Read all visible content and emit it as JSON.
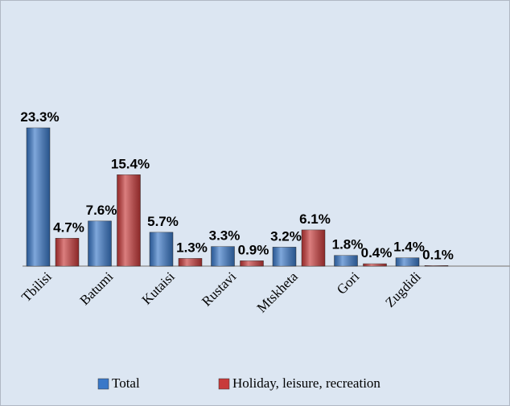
{
  "chart_data": {
    "type": "bar",
    "categories": [
      "Tbilisi",
      "Batumi",
      "Kutaisi",
      "Rustavi",
      "Mtskheta",
      "Gori",
      "Zugdidi"
    ],
    "series": [
      {
        "name": "Total",
        "color": "#3a78c8",
        "values": [
          23.3,
          7.6,
          5.7,
          3.3,
          3.2,
          1.8,
          1.4
        ],
        "value_labels": [
          "23.3%",
          "7.6%",
          "5.7%",
          "3.3%",
          "3.2%",
          "1.8%",
          "1.4%"
        ]
      },
      {
        "name": "Holiday, leisure, recreation",
        "color": "#c83a3a",
        "values": [
          4.7,
          15.4,
          1.3,
          0.9,
          6.1,
          0.4,
          0.1
        ],
        "value_labels": [
          "4.7%",
          "15.4%",
          "1.3%",
          "0.9%",
          "6.1%",
          "0.4%",
          "0.1%"
        ]
      }
    ],
    "legend": "bottom"
  }
}
